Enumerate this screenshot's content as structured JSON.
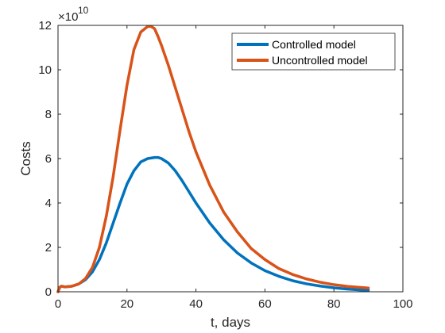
{
  "chart_data": {
    "type": "line",
    "title": "",
    "xlabel": "t, days",
    "ylabel": "Costs",
    "y_multiplier_label": "×10",
    "y_multiplier_exp": "10",
    "xlim": [
      0,
      100
    ],
    "ylim": [
      0,
      12
    ],
    "xticks": [
      0,
      20,
      40,
      60,
      80,
      100
    ],
    "yticks": [
      0,
      2,
      4,
      6,
      8,
      10,
      12
    ],
    "grid": false,
    "legend_position": "top-right",
    "series": [
      {
        "name": "Controlled model",
        "color": "#0072BD",
        "x": [
          0,
          0.5,
          1,
          2,
          4,
          6,
          8,
          10,
          12,
          14,
          16,
          18,
          20,
          22,
          24,
          26,
          28,
          29,
          30,
          32,
          34,
          36,
          38,
          40,
          44,
          48,
          52,
          56,
          60,
          64,
          68,
          72,
          76,
          80,
          84,
          88,
          90
        ],
        "y": [
          0.0,
          0.2,
          0.25,
          0.22,
          0.25,
          0.35,
          0.55,
          0.9,
          1.45,
          2.2,
          3.1,
          4.0,
          4.85,
          5.45,
          5.85,
          6.0,
          6.05,
          6.05,
          6.0,
          5.8,
          5.45,
          5.0,
          4.5,
          4.0,
          3.1,
          2.35,
          1.75,
          1.3,
          0.95,
          0.7,
          0.5,
          0.36,
          0.26,
          0.18,
          0.12,
          0.08,
          0.07
        ]
      },
      {
        "name": "Uncontrolled model",
        "color": "#D95319",
        "x": [
          0,
          0.5,
          1,
          2,
          4,
          6,
          8,
          10,
          12,
          14,
          16,
          18,
          20,
          22,
          24,
          26,
          27,
          28,
          29,
          30,
          32,
          34,
          36,
          38,
          40,
          44,
          48,
          52,
          56,
          60,
          64,
          68,
          72,
          76,
          80,
          84,
          88,
          90
        ],
        "y": [
          0.0,
          0.2,
          0.25,
          0.22,
          0.25,
          0.35,
          0.6,
          1.1,
          2.0,
          3.4,
          5.2,
          7.3,
          9.3,
          10.9,
          11.7,
          11.95,
          11.95,
          11.85,
          11.5,
          11.1,
          10.2,
          9.2,
          8.2,
          7.2,
          6.3,
          4.8,
          3.6,
          2.7,
          1.95,
          1.45,
          1.05,
          0.78,
          0.58,
          0.43,
          0.32,
          0.24,
          0.19,
          0.17
        ]
      }
    ]
  }
}
